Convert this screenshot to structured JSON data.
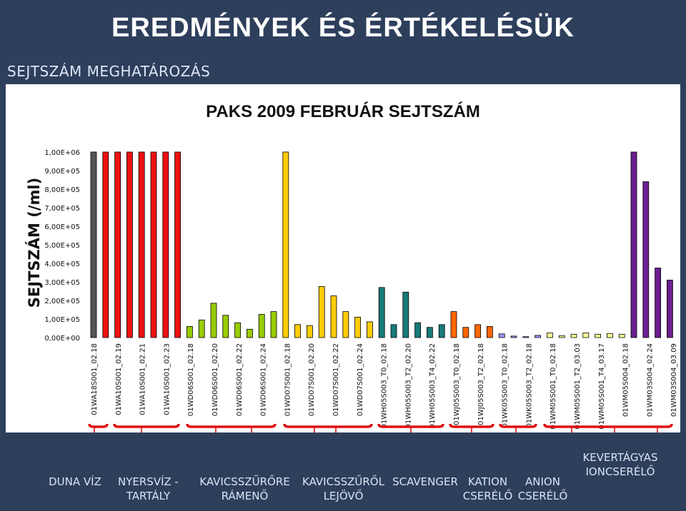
{
  "header": {
    "title": "EREDMÉNYEK ÉS ÉRTÉKELÉSÜK",
    "subtitle": "SEJTSZÁM MEGHATÁROZÁS"
  },
  "chart_data": {
    "type": "bar",
    "title": "PAKS 2009 FEBRUÁR SEJTSZÁM",
    "ylabel": "SEJTSZÁM (/ml)",
    "xlabel": "",
    "ylim": [
      0,
      1000000
    ],
    "yticks": [
      "0,00E+00",
      "1,00E+05",
      "2,00E+05",
      "3,00E+05",
      "4,00E+05",
      "5,00E+05",
      "6,00E+05",
      "7,00E+05",
      "8,00E+05",
      "9,00E+05",
      "1,00E+06"
    ],
    "grid": false,
    "legend": "none",
    "categories": [
      "01WA18S001_02.18",
      "01WA10S001_02.19",
      "01WA10S001_02.21",
      "01WA10S001_02.23",
      "01WD06S001_02.18",
      "01WD06S001_02.20",
      "01WD06S001_02.22",
      "01WD06S001_02.24",
      "01WD07S001_02.18",
      "01WD07S001_02.20",
      "01WD07S001_02.22",
      "01WD07S001_02.24",
      "01WH05S003_T0_02.18",
      "01WH05S003_T2_02.20",
      "01WH05S003_T4_02.22",
      "01WJ05S003_T0_02.18",
      "01WJ05S003_T2_02.18",
      "01WK05S003_T0_02.18",
      "01WK05S003_T2_02.18",
      "01WM05S001_T0_02.18",
      "01WM05S001_T2_03.03",
      "01WM05S001_T4_03.17",
      "01WM05S004_02.18",
      "01WM03S004_02.24",
      "01WM03S004_03.09"
    ],
    "bars": [
      {
        "value": 1000000,
        "color": "#555555"
      },
      {
        "value": 1000000,
        "color": "#ee1111"
      },
      {
        "value": 1000000,
        "color": "#ee1111"
      },
      {
        "value": 1000000,
        "color": "#ee1111"
      },
      {
        "value": 1000000,
        "color": "#ee1111"
      },
      {
        "value": 1000000,
        "color": "#ee1111"
      },
      {
        "value": 1000000,
        "color": "#ee1111"
      },
      {
        "value": 1000000,
        "color": "#ee1111"
      },
      {
        "value": 60000,
        "color": "#99cc00"
      },
      {
        "value": 95000,
        "color": "#99cc00"
      },
      {
        "value": 185000,
        "color": "#99cc00"
      },
      {
        "value": 120000,
        "color": "#99cc00"
      },
      {
        "value": 80000,
        "color": "#99cc00"
      },
      {
        "value": 45000,
        "color": "#99cc00"
      },
      {
        "value": 125000,
        "color": "#99cc00"
      },
      {
        "value": 140000,
        "color": "#99cc00"
      },
      {
        "value": 1000000,
        "color": "#ffcc00"
      },
      {
        "value": 70000,
        "color": "#ffcc00"
      },
      {
        "value": 65000,
        "color": "#ffcc00"
      },
      {
        "value": 275000,
        "color": "#ffcc00"
      },
      {
        "value": 225000,
        "color": "#ffcc00"
      },
      {
        "value": 140000,
        "color": "#ffcc00"
      },
      {
        "value": 110000,
        "color": "#ffcc00"
      },
      {
        "value": 85000,
        "color": "#ffcc00"
      },
      {
        "value": 270000,
        "color": "#1a7a7a"
      },
      {
        "value": 70000,
        "color": "#1a7a7a"
      },
      {
        "value": 245000,
        "color": "#1a7a7a"
      },
      {
        "value": 80000,
        "color": "#1a7a7a"
      },
      {
        "value": 55000,
        "color": "#1a7a7a"
      },
      {
        "value": 70000,
        "color": "#1a7a7a"
      },
      {
        "value": 140000,
        "color": "#ff6600"
      },
      {
        "value": 55000,
        "color": "#ff6600"
      },
      {
        "value": 70000,
        "color": "#ff6600"
      },
      {
        "value": 60000,
        "color": "#ff6600"
      },
      {
        "value": 20000,
        "color": "#9999ff"
      },
      {
        "value": 8000,
        "color": "#9999ff"
      },
      {
        "value": 5000,
        "color": "#9999ff"
      },
      {
        "value": 12000,
        "color": "#9999ff"
      },
      {
        "value": 25000,
        "color": "#ffff99"
      },
      {
        "value": 10000,
        "color": "#ffff99"
      },
      {
        "value": 18000,
        "color": "#ffff99"
      },
      {
        "value": 25000,
        "color": "#ffff99"
      },
      {
        "value": 18000,
        "color": "#ffff99"
      },
      {
        "value": 22000,
        "color": "#ffff99"
      },
      {
        "value": 18000,
        "color": "#ffff99"
      },
      {
        "value": 1000000,
        "color": "#6b1f8f"
      },
      {
        "value": 840000,
        "color": "#6b1f8f"
      },
      {
        "value": 375000,
        "color": "#6b1f8f"
      },
      {
        "value": 310000,
        "color": "#6b1f8f"
      }
    ]
  },
  "groups": [
    {
      "label": "DUNA VÍZ"
    },
    {
      "label": "NYERSVÍZ -\nTARTÁLY"
    },
    {
      "label": "KAVICSSZŰRŐRE\nRÁMENŐ"
    },
    {
      "label": "KAVICSSZŰRŐL\nLEJÖVŐ"
    },
    {
      "label": "SCAVENGER"
    },
    {
      "label": "KATION\nCSERÉLŐ"
    },
    {
      "label": "ANION\nCSERÉLŐ"
    },
    {
      "label": "KEVERTÁGYAS\nIONCSERÉLŐ"
    }
  ]
}
